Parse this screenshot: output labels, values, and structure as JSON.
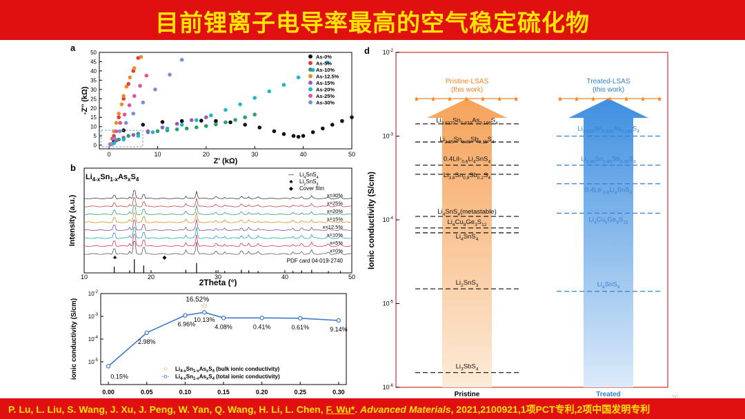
{
  "slide": {
    "title": "目前锂离子电导率最高的空气稳定硫化物",
    "citation_authors": "P. Lu, L. Liu, S. Wang, J. Xu, J. Peng, W. Yan, Q. Wang, H. Li, L. Chen, ",
    "citation_corresponding": "F. Wu*",
    "citation_journal": "Advanced Materials",
    "citation_tail": ", 2021,2100921,1项PCT专利,2项中国发明专利",
    "page_number": "36"
  },
  "colors": {
    "bar": "#e01010",
    "title_text": "#ffe400"
  },
  "panel_a": {
    "label": "a",
    "xlabel": "Z' (kΩ)",
    "ylabel": "-Z'' (kΩ)",
    "x_ticks": [
      "0",
      "10",
      "20",
      "30",
      "40",
      "50"
    ],
    "y_ticks": [
      "0",
      "5",
      "10",
      "15",
      "20",
      "25",
      "30",
      "35",
      "40",
      "45",
      "50"
    ],
    "legend": [
      "As-0%",
      "As-5%",
      "As-10%",
      "As-12.5%",
      "As-15%",
      "As-20%",
      "As-25%",
      "As-30%"
    ]
  },
  "panel_b": {
    "label": "b",
    "formula_main": "Li",
    "formula_sub1": "4-x",
    "formula_sn": "Sn",
    "formula_sub2": "1-x",
    "formula_as": "As",
    "formula_sub3": "x",
    "formula_s": "S",
    "formula_sub4": "4",
    "xlabel": "2Theta (°)",
    "ylabel": "Intensity (a.u.)",
    "x_ticks": [
      "10",
      "20",
      "30",
      "40",
      "50"
    ],
    "legend": [
      "Li4SnS4",
      "Li2SnS3",
      "Cover film"
    ],
    "curve_labels": [
      "x=30%",
      "x=25%",
      "x=20%",
      "x=15%",
      "x=12.5%",
      "x=10%",
      "x=5%",
      "x=0%"
    ],
    "pdf_card": "PDF card 04-019-2740"
  },
  "panel_c": {
    "ylabel": "ionic conductivity (S/cm)",
    "y_ticks": [
      "10-2",
      "10-3",
      "10-4",
      "10-5"
    ],
    "y_ticks_exp": [
      "-2",
      "-3",
      "-4",
      "-5"
    ],
    "x_ticks": [
      "0.00",
      "0.05",
      "0.10",
      "0.15",
      "0.20",
      "0.25",
      "0.30"
    ],
    "legend_bulk": "(bulk ionic conductivity)",
    "legend_total": "(total ionic conductivity)",
    "star_label": "16.52%",
    "point_labels": [
      "0.15%",
      "2.98%",
      "6.96%",
      "10.13%",
      "4.08%",
      "0.41%",
      "0.61%",
      "9.14%"
    ]
  },
  "panel_d": {
    "label": "d",
    "ylabel": "Ionic conductivity (S/cm)",
    "y_ticks_exp": [
      "-2",
      "-3",
      "-4",
      "-5",
      "-6"
    ],
    "x_labels": [
      "Pristine",
      "Treated"
    ],
    "pristine_header": [
      "Pristine-LSAS",
      "(this work)"
    ],
    "treated_header": [
      "Treated-LSAS",
      "(this work)"
    ],
    "pristine_labels": [
      "Li3.833Sn0.833As0.166S4",
      "Li3.85Sn0.85Sb0.15S4",
      "0.4LiI-0.6Li4SnS4",
      "Li3.8Sn0.8Sb0.2S4",
      "Li4SnS4(metastable)",
      "Li4Cu8Ge3S12",
      "Li4SnS4",
      "Li2SnS3",
      "Li3SbS4"
    ],
    "treated_labels": [
      "Li3.833Sn0.833As0.166S4",
      "Li3.85Sn0.85Sb0.15S4",
      "0.4LiI-0.6Li4SnS4",
      "Li4Cu8Ge3S12",
      "Li4SnS4"
    ],
    "pristine_color": "#f58220",
    "treated_color": "#2f7fd6"
  },
  "chart_data": [
    {
      "type": "scatter",
      "panel": "a",
      "xlabel": "Z' (kΩ)",
      "ylabel": "-Z'' (kΩ)",
      "xlim": [
        -2,
        50
      ],
      "ylim": [
        -2,
        50
      ],
      "series": [
        {
          "name": "As-0%",
          "color": "#111111",
          "x": [
            1,
            3,
            7,
            11,
            15,
            19,
            22,
            25,
            28,
            31,
            34,
            36,
            38,
            39,
            40,
            42,
            44,
            46,
            48,
            50
          ],
          "y": [
            2,
            8,
            11,
            12.5,
            13,
            13.2,
            13,
            12.3,
            11,
            9.5,
            7.5,
            6,
            5,
            4.5,
            5,
            7,
            9,
            11,
            13,
            15
          ]
        },
        {
          "name": "As-5%",
          "color": "#e23b3b",
          "x": [
            0.3,
            1,
            2,
            3,
            4,
            5,
            6
          ],
          "y": [
            0.5,
            5,
            15,
            25,
            33,
            40,
            47
          ]
        },
        {
          "name": "As-10%",
          "color": "#2e9e6e",
          "x": [
            1,
            2,
            4,
            6,
            8,
            10,
            12,
            14,
            16,
            18,
            20,
            22,
            24,
            26,
            28,
            30
          ],
          "y": [
            1,
            3,
            5,
            6.2,
            7,
            7.5,
            8,
            8.5,
            9,
            9.6,
            10.3,
            11.2,
            12.3,
            13.6,
            15,
            16.5
          ]
        },
        {
          "name": "As-12.5%",
          "color": "#f08a24",
          "x": [
            0.2,
            0.6,
            1,
            1.5,
            2,
            2.6,
            3,
            3.6,
            4.3,
            5.2,
            6.6
          ],
          "y": [
            0.5,
            3.5,
            7.5,
            12,
            17,
            22,
            26.5,
            31.5,
            36.5,
            41.5,
            47.5
          ]
        },
        {
          "name": "As-15%",
          "color": "#9b59b6",
          "x": [
            0.5,
            1.5,
            3,
            5,
            8,
            11,
            14,
            17,
            20
          ],
          "y": [
            0.5,
            2.5,
            4,
            5.5,
            7.5,
            9.5,
            11.5,
            13.5,
            15
          ]
        },
        {
          "name": "As-20%",
          "color": "#20b8c8",
          "x": [
            1,
            3,
            6,
            9,
            12,
            15,
            18,
            21,
            24,
            27,
            30,
            33,
            36,
            39,
            42,
            45
          ],
          "y": [
            1,
            3,
            5,
            7,
            9,
            11,
            13.5,
            16,
            19,
            22,
            25.5,
            29,
            32.5,
            36.5,
            40.5,
            44.5
          ]
        },
        {
          "name": "As-25%",
          "color": "#e0559a",
          "x": [
            0.3,
            0.8,
            1.5,
            2.3,
            3.2,
            4.2,
            5.2,
            6.4,
            7.7
          ],
          "y": [
            0.5,
            3.5,
            7.5,
            12,
            16.5,
            21.5,
            26.5,
            32,
            37.5
          ]
        },
        {
          "name": "As-30%",
          "color": "#7b8fd6",
          "x": [
            0.5,
            1.2,
            2.2,
            3.5,
            5,
            7,
            9.5,
            12.5,
            15
          ],
          "y": [
            0.5,
            3.5,
            7.5,
            12,
            17,
            23,
            30,
            38,
            46
          ]
        }
      ]
    },
    {
      "type": "line",
      "panel": "b",
      "xlabel": "2Theta (°)",
      "ylabel": "Intensity (a.u.)",
      "xlim": [
        10,
        50
      ],
      "peaks_2theta": [
        14.5,
        16.8,
        17.5,
        18.9,
        25.2,
        26.8,
        29.7,
        31.0,
        33.5,
        34.6,
        36.0,
        41.2,
        42.5,
        44.0,
        46.5,
        48.3
      ],
      "series": [
        {
          "name": "x=30%",
          "color": "#3b3b3b"
        },
        {
          "name": "x=25%",
          "color": "#c04040"
        },
        {
          "name": "x=20%",
          "color": "#2e9e6e"
        },
        {
          "name": "x=15%",
          "color": "#e08a1a"
        },
        {
          "name": "x=12.5%",
          "color": "#8e44ad"
        },
        {
          "name": "x=10%",
          "color": "#1aa0b0"
        },
        {
          "name": "x=5%",
          "color": "#e03060"
        },
        {
          "name": "x=0%",
          "color": "#555555"
        }
      ]
    },
    {
      "type": "line",
      "panel": "c",
      "ylabel": "ionic conductivity (S/cm)",
      "yscale": "log",
      "ylim": [
        1e-06,
        0.01
      ],
      "xlim": [
        -0.01,
        0.31
      ],
      "x": [
        0.0,
        0.05,
        0.1,
        0.125,
        0.15,
        0.2,
        0.25,
        0.3
      ],
      "series": [
        {
          "name": "total ionic conductivity",
          "values": [
            6.4e-06,
            0.00019,
            0.0011,
            0.0015,
            0.00085,
            0.00085,
            0.00082,
            0.00066
          ]
        },
        {
          "name": "bulk ionic conductivity",
          "x": [
            0.125
          ],
          "values": [
            0.003
          ]
        }
      ]
    },
    {
      "type": "bar",
      "panel": "d",
      "ylabel": "Ionic conductivity (S/cm)",
      "yscale": "log",
      "ylim": [
        1e-06,
        0.01
      ],
      "categories": [
        "Pristine",
        "Treated"
      ],
      "values": [
        0.0025,
        0.0025
      ],
      "pristine_levels": [
        0.0014,
        0.00085,
        0.00045,
        0.00035,
        0.00011,
        8e-05,
        7e-05,
        1.5e-05,
        1.5e-06
      ],
      "treated_levels": [
        0.001,
        0.00045,
        0.00027,
        0.00012,
        1.4e-05
      ]
    }
  ]
}
